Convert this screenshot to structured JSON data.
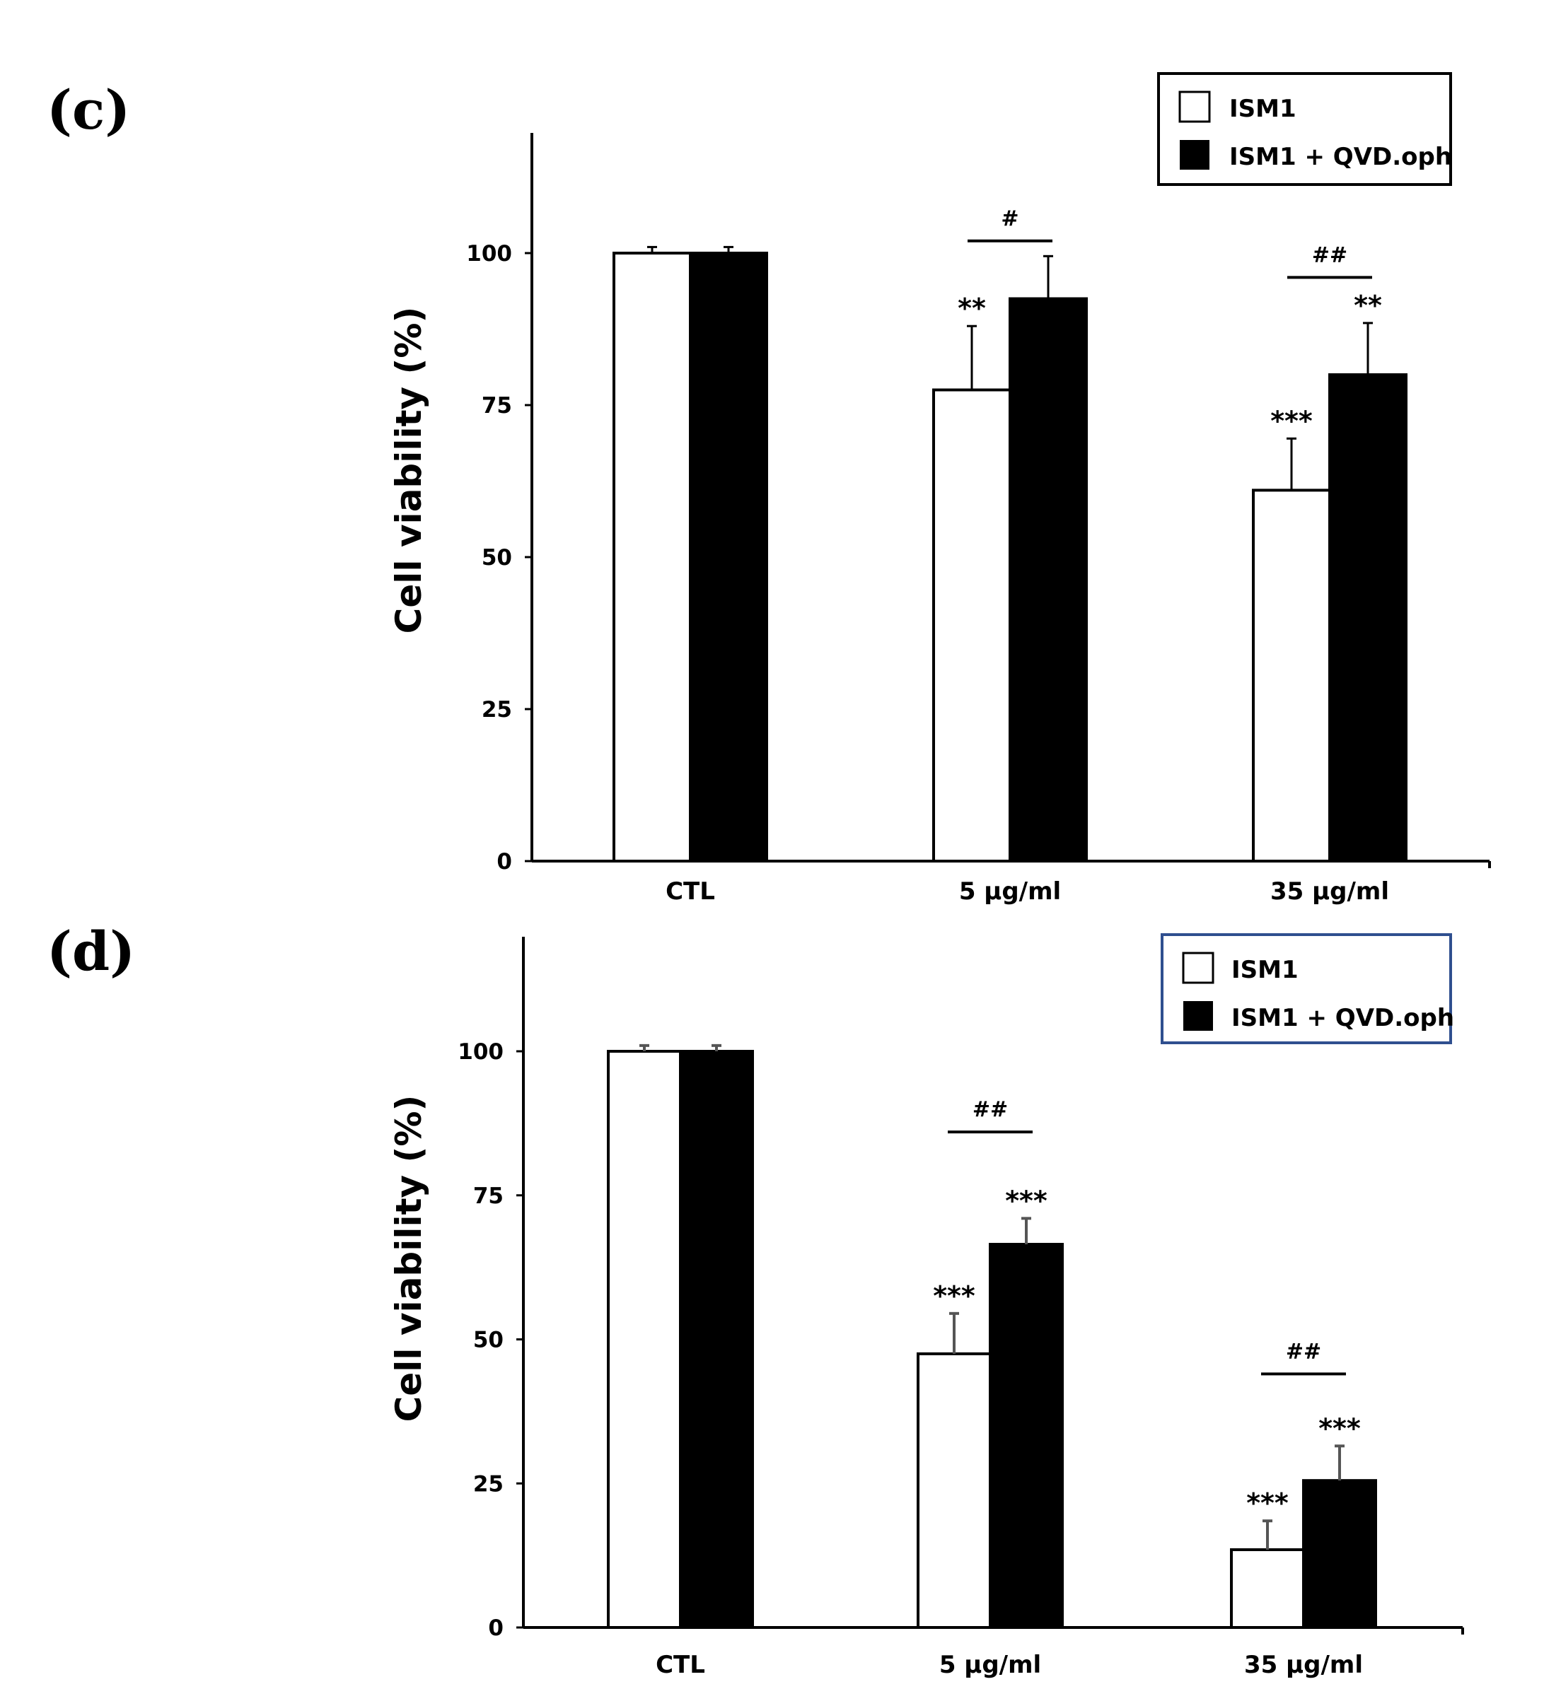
{
  "chart_data": [
    {
      "type": "bar",
      "panel": "(c)",
      "ylabel": "Cell viability (%)",
      "xlabel": "",
      "ylim": [
        0,
        120
      ],
      "yticks": [
        0,
        25,
        50,
        75,
        100
      ],
      "categories": [
        "CTL",
        "5 μg/ml",
        "35 μg/ml"
      ],
      "series": [
        {
          "name": "ISM1",
          "color": "#ffffff",
          "values": [
            100,
            77.5,
            61
          ],
          "errors": [
            1,
            10.5,
            8.5
          ]
        },
        {
          "name": "ISM1 + QVD.oph",
          "color": "#000000",
          "values": [
            100,
            92.5,
            80
          ],
          "errors": [
            1,
            7,
            8.5
          ]
        }
      ],
      "significance": [
        {
          "category": 1,
          "series": 0,
          "label": "**"
        },
        {
          "category": 2,
          "series": 0,
          "label": "***"
        },
        {
          "category": 2,
          "series": 1,
          "label": "**"
        }
      ],
      "brackets": [
        {
          "category": 1,
          "label": "#",
          "level": 102
        },
        {
          "category": 2,
          "label": "##",
          "level": 96
        }
      ],
      "legend_position": "top-right",
      "legend_border": "#000000"
    },
    {
      "type": "bar",
      "panel": "(d)",
      "ylabel": "Cell viability (%)",
      "xlabel": "",
      "ylim": [
        0,
        120
      ],
      "yticks": [
        0,
        25,
        50,
        75,
        100
      ],
      "categories": [
        "CTL",
        "5 μg/ml",
        "35 μg/ml"
      ],
      "series": [
        {
          "name": "ISM1",
          "color": "#ffffff",
          "values": [
            100,
            47.5,
            13.5
          ],
          "errors": [
            1,
            7,
            5
          ]
        },
        {
          "name": "ISM1 + QVD.oph",
          "color": "#000000",
          "values": [
            100,
            66.5,
            25.5
          ],
          "errors": [
            1,
            4.5,
            6
          ]
        }
      ],
      "significance": [
        {
          "category": 1,
          "series": 0,
          "label": "***"
        },
        {
          "category": 1,
          "series": 1,
          "label": "***"
        },
        {
          "category": 2,
          "series": 0,
          "label": "***"
        },
        {
          "category": 2,
          "series": 1,
          "label": "***"
        }
      ],
      "brackets": [
        {
          "category": 1,
          "label": "##",
          "level": 86
        },
        {
          "category": 2,
          "label": "##",
          "level": 44
        }
      ],
      "legend_position": "top-right",
      "legend_border": "#2f4f8f"
    }
  ]
}
